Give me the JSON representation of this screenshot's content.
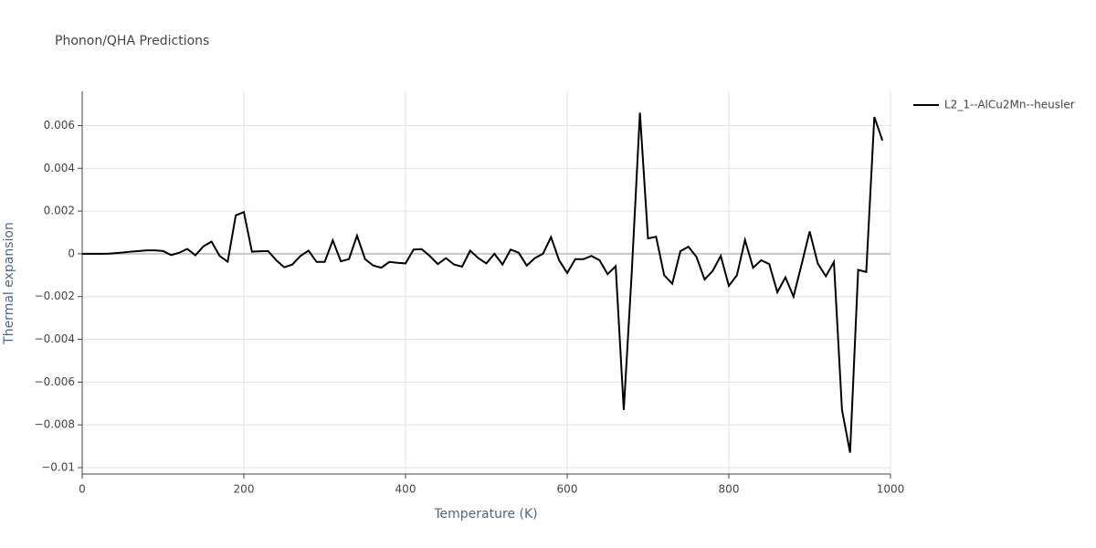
{
  "chart_data": {
    "type": "line",
    "title": "Phonon/QHA Predictions",
    "x_label": "Temperature (K)",
    "y_label": "Thermal expansion",
    "x": [
      0,
      10,
      20,
      30,
      40,
      50,
      60,
      70,
      80,
      90,
      100,
      110,
      120,
      130,
      140,
      150,
      160,
      170,
      180,
      190,
      200,
      210,
      220,
      230,
      240,
      250,
      260,
      270,
      280,
      290,
      300,
      310,
      320,
      330,
      340,
      350,
      360,
      370,
      380,
      390,
      400,
      410,
      420,
      430,
      440,
      450,
      460,
      470,
      480,
      490,
      500,
      510,
      520,
      530,
      540,
      550,
      560,
      570,
      580,
      590,
      600,
      610,
      620,
      630,
      640,
      650,
      660,
      670,
      680,
      690,
      700,
      710,
      720,
      730,
      740,
      750,
      760,
      770,
      780,
      790,
      800,
      810,
      820,
      830,
      840,
      850,
      860,
      870,
      880,
      890,
      900,
      910,
      920,
      930,
      940,
      950,
      960,
      970,
      980,
      990
    ],
    "series": [
      {
        "name": "L2_1--AlCu2Mn--heusler",
        "color": "#000000",
        "values": [
          0,
          0,
          0,
          0,
          3e-05,
          6e-05,
          0.0001,
          0.00013,
          0.00016,
          0.00016,
          0.00013,
          -6e-05,
          5e-05,
          0.00023,
          -7e-05,
          0.00035,
          0.00057,
          -0.0001,
          -0.00037,
          0.0018,
          0.00195,
          0.0001,
          0.00012,
          0.00013,
          -0.0003,
          -0.00063,
          -0.0005,
          -0.0001,
          0.00015,
          -0.00038,
          -0.00038,
          0.00063,
          -0.00035,
          -0.00025,
          0.00085,
          -0.00025,
          -0.00055,
          -0.00065,
          -0.00038,
          -0.00042,
          -0.00045,
          0.0002,
          0.00022,
          -0.0001,
          -0.00048,
          -0.0002,
          -0.0005,
          -0.0006,
          0.00015,
          -0.0002,
          -0.00045,
          0,
          -0.0005,
          0.0002,
          5e-05,
          -0.00055,
          -0.0002,
          0,
          0.00078,
          -0.0003,
          -0.0009,
          -0.00025,
          -0.00025,
          -0.0001,
          -0.0003,
          -0.00095,
          -0.00058,
          -0.0073,
          -0.0008,
          0.0066,
          0.00072,
          0.0008,
          -0.001,
          -0.0014,
          0.00012,
          0.00033,
          -0.00015,
          -0.0012,
          -0.0008,
          -0.0001,
          -0.0015,
          -0.001,
          0.00065,
          -0.00065,
          -0.0003,
          -0.00048,
          -0.0018,
          -0.0011,
          -0.002,
          -0.0005,
          0.00105,
          -0.00045,
          -0.00105,
          -0.00038,
          -0.0073,
          -0.0093,
          -0.00075,
          -0.00085,
          0.0064,
          0.0053
        ]
      }
    ],
    "xlim": [
      0,
      1000
    ],
    "xticks": [
      0,
      200,
      400,
      600,
      800,
      1000
    ],
    "ylim": [
      -0.0103,
      0.0076
    ],
    "yticks": [
      {
        "value": -0.01,
        "label": "−0.01"
      },
      {
        "value": -0.008,
        "label": "−0.008"
      },
      {
        "value": -0.006,
        "label": "−0.006"
      },
      {
        "value": -0.004,
        "label": "−0.004"
      },
      {
        "value": -0.002,
        "label": "−0.002"
      },
      0,
      0.002,
      0.004,
      0.006
    ],
    "grid": true
  }
}
